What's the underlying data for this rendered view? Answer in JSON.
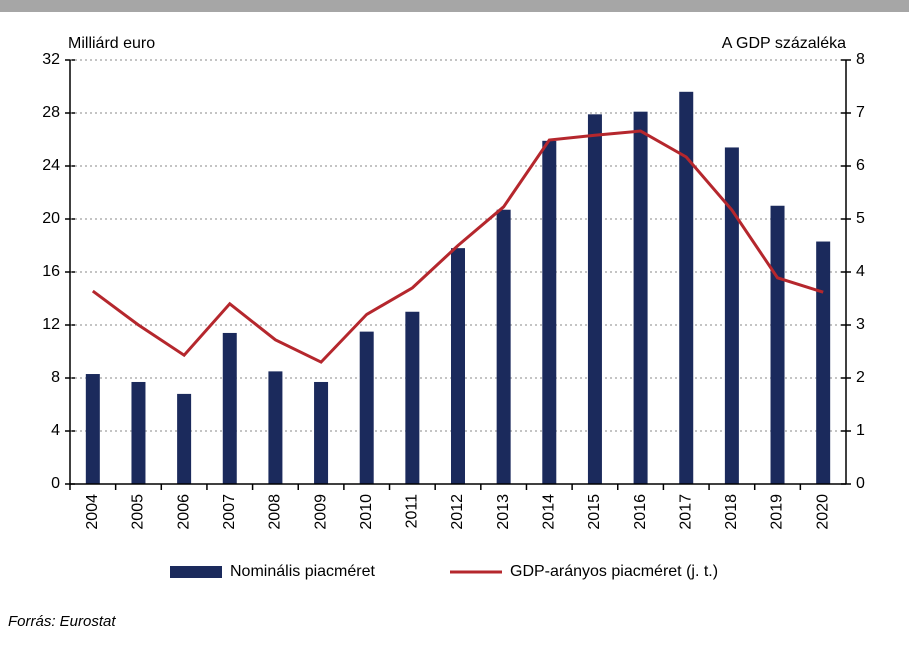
{
  "chart_data": {
    "type": "bar",
    "y_label": "Milliárd euro",
    "y2_label": "A GDP százaléka",
    "source": "Forrás: Eurostat",
    "categories": [
      "2004",
      "2005",
      "2006",
      "2007",
      "2008",
      "2009",
      "2010",
      "2011",
      "2012",
      "2013",
      "2014",
      "2015",
      "2016",
      "2017",
      "2018",
      "2019",
      "2020"
    ],
    "series": [
      {
        "name": "Nominális piacméret",
        "color": "#1b2a5c",
        "type": "bar",
        "values": [
          8.3,
          7.7,
          6.8,
          11.4,
          8.5,
          7.7,
          11.5,
          13.0,
          17.8,
          20.7,
          25.9,
          27.9,
          28.1,
          29.6,
          25.4,
          21.0,
          18.3
        ]
      },
      {
        "name": "GDP-arányos piacméret (j. t.)",
        "color": "#b5272d",
        "type": "line",
        "axis": "y2",
        "values": [
          3.64,
          3.0,
          2.43,
          3.4,
          2.72,
          2.3,
          3.2,
          3.7,
          4.5,
          5.23,
          6.49,
          6.58,
          6.66,
          6.17,
          5.17,
          3.89,
          3.62
        ]
      }
    ],
    "ylim": [
      0,
      32
    ],
    "yticks": [
      0,
      4,
      8,
      12,
      16,
      20,
      24,
      28,
      32
    ],
    "y2lim": [
      0,
      8
    ],
    "y2ticks": [
      0,
      1,
      2,
      3,
      4,
      5,
      6,
      7,
      8
    ],
    "grid": true
  }
}
